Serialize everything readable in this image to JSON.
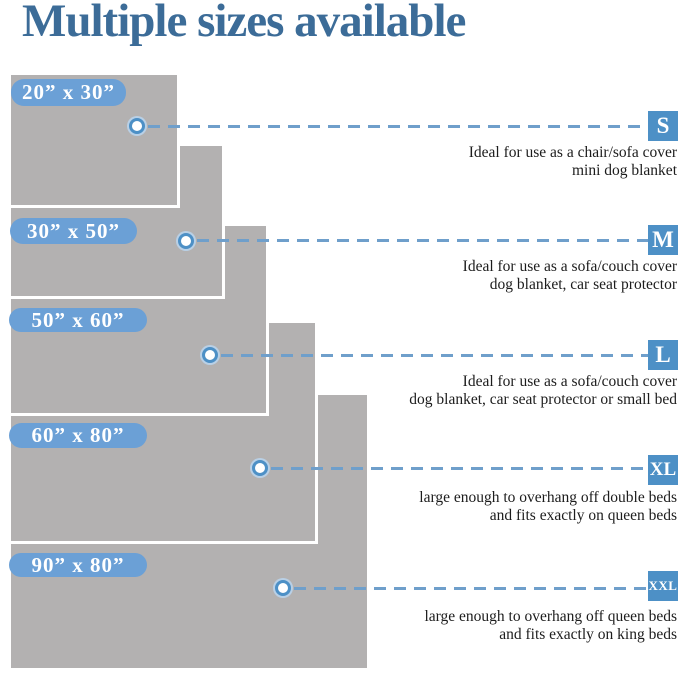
{
  "title": "Multiple sizes available",
  "colors": {
    "title_blue": "#3c6c98",
    "rect_fill_gray": "#b3b1b1",
    "rect_border": "#ffffff",
    "pill_blue": "#6ba0d6",
    "badge_blue": "#4d90c6",
    "dash_blue": "#6f9fcb",
    "description_text": "#1c1c1c"
  },
  "sizes": [
    {
      "badge": "S",
      "label": "20” x 30”",
      "desc1": "Ideal for use as a chair/sofa cover",
      "desc2": "mini dog blanket"
    },
    {
      "badge": "M",
      "label": "30” x 50”",
      "desc1": "Ideal for use as a sofa/couch cover",
      "desc2": "dog blanket, car seat protector"
    },
    {
      "badge": "L",
      "label": "50” x 60”",
      "desc1": "Ideal for use as a sofa/couch cover",
      "desc2": "dog blanket, car seat protector or small bed"
    },
    {
      "badge": "XL",
      "label": "60” x 80”",
      "desc1": "large enough to overhang off double beds",
      "desc2": "and fits exactly on queen beds"
    },
    {
      "badge": "XXL",
      "label": "90” x 80”",
      "desc1": "large enough to overhang off queen beds",
      "desc2": "and fits exactly on king beds"
    }
  ]
}
